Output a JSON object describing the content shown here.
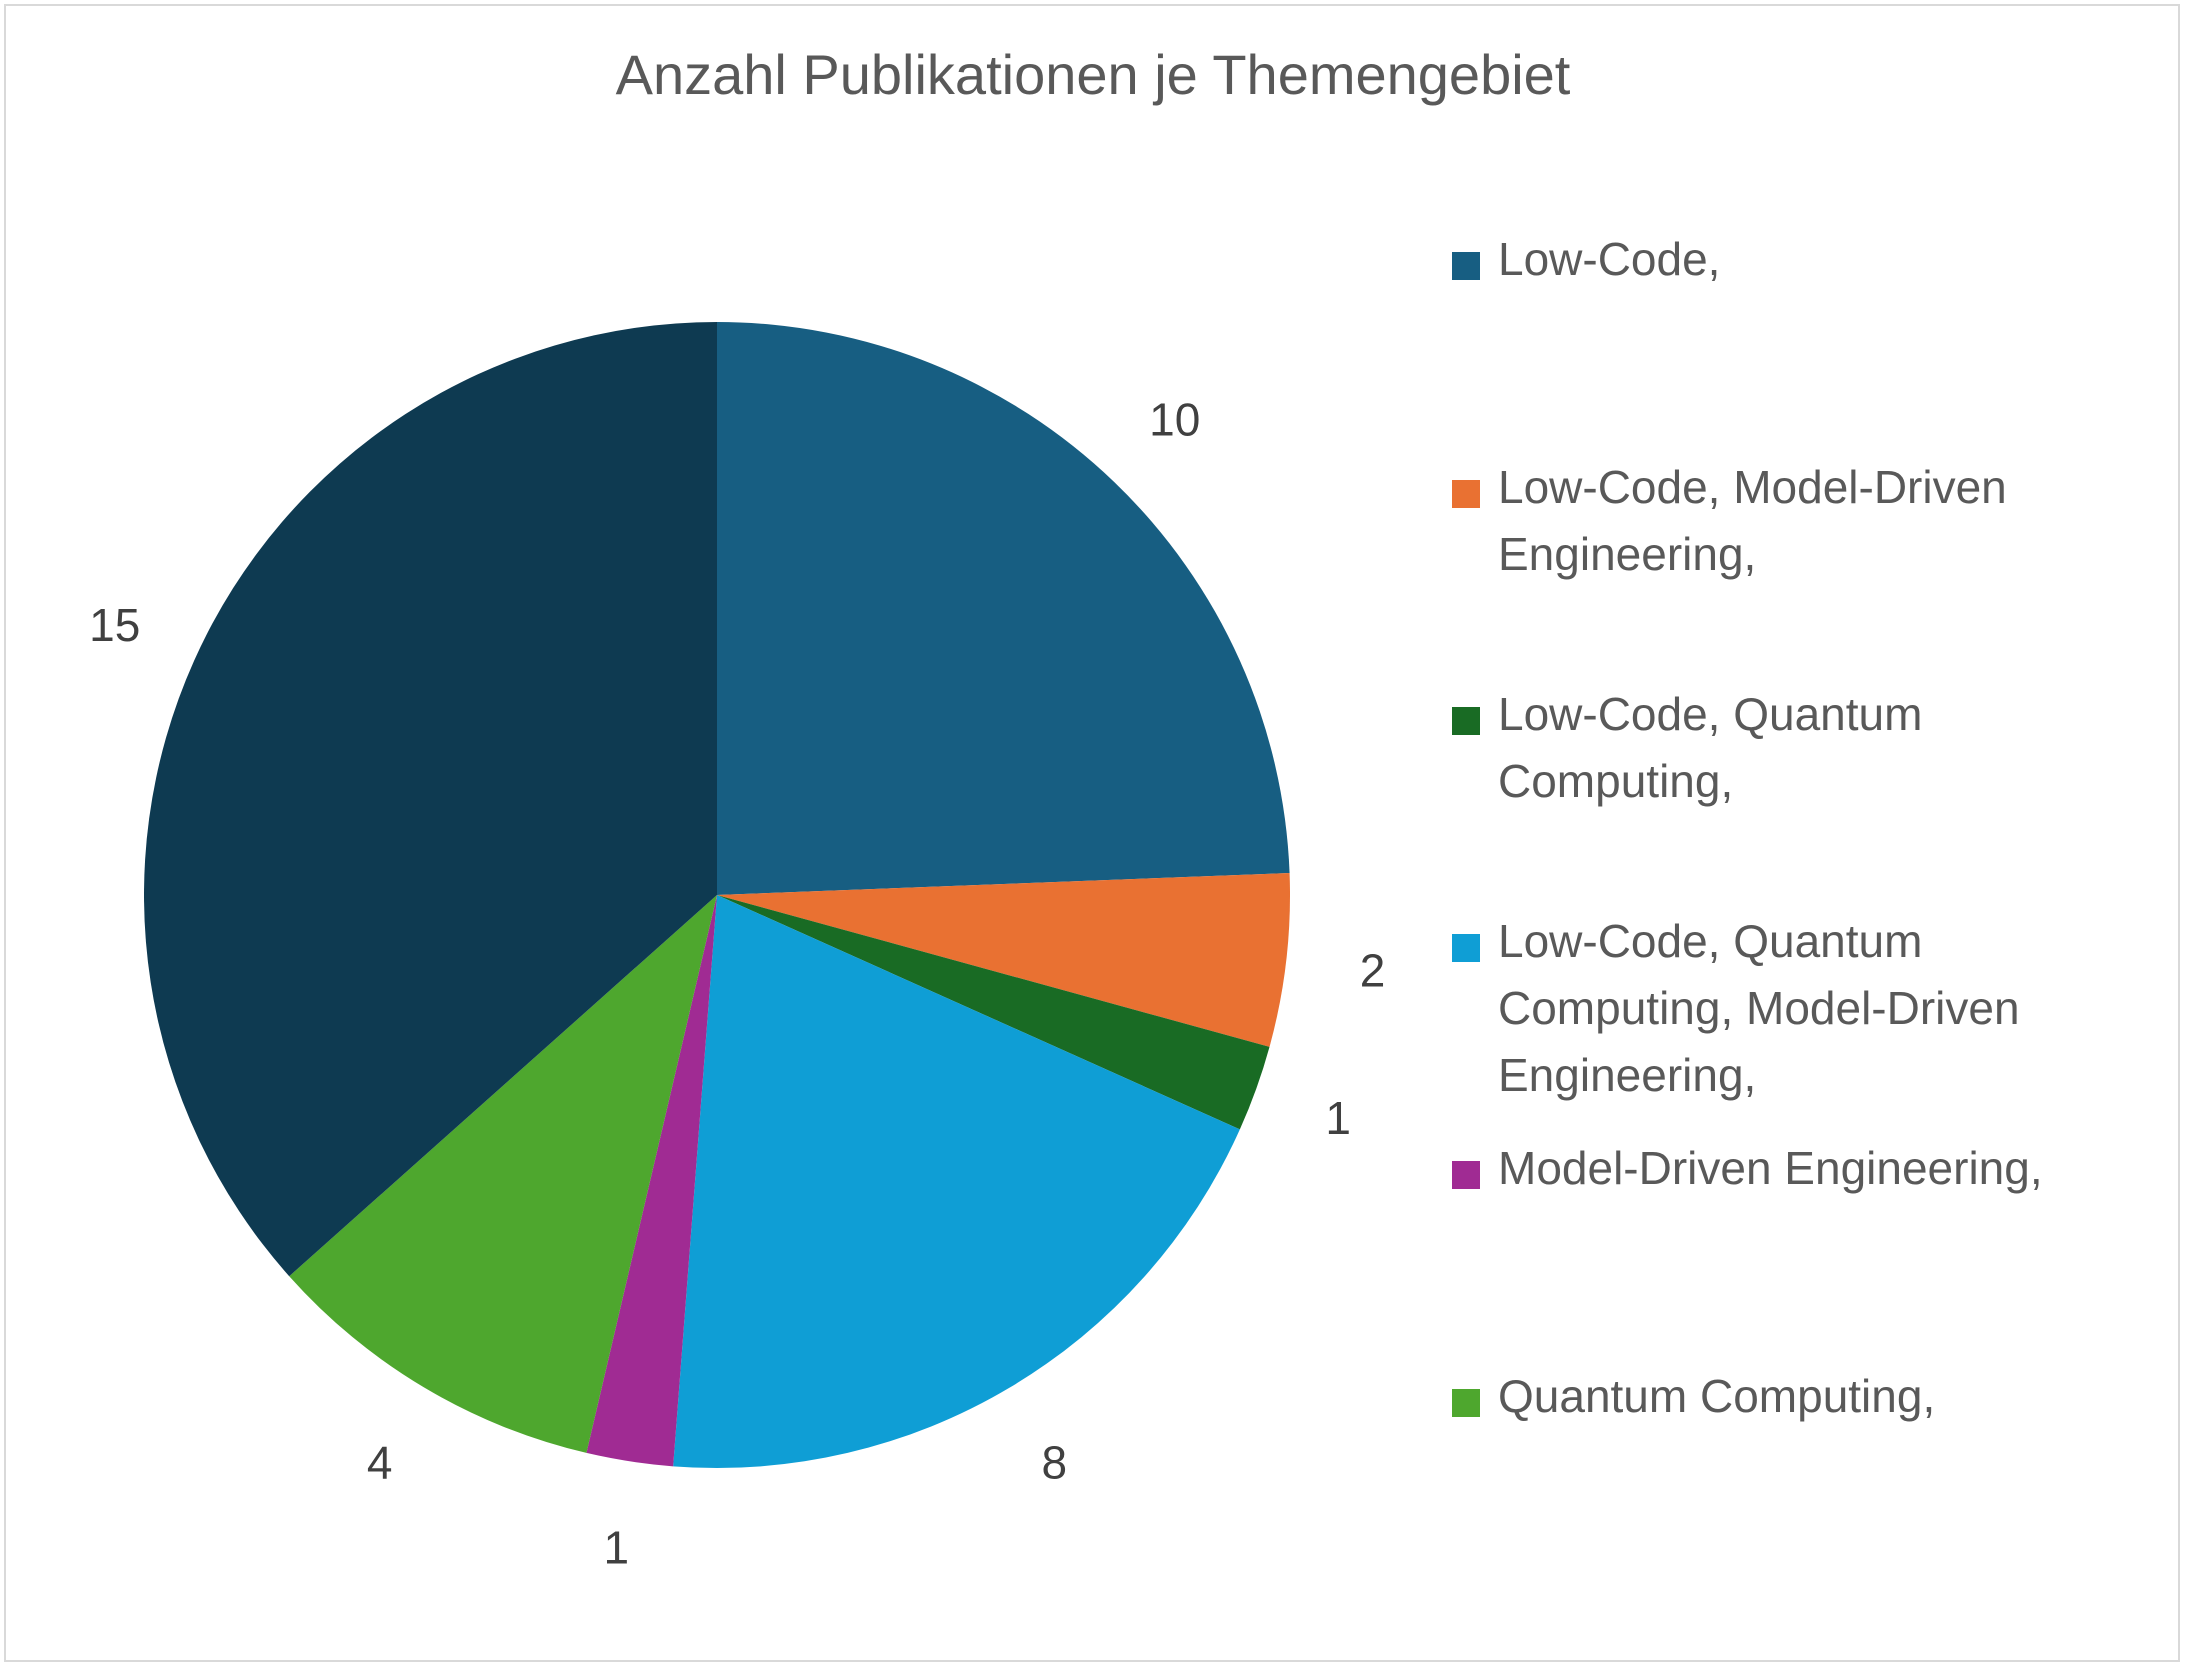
{
  "chart_data": {
    "type": "pie",
    "title": "Anzahl Publikationen je Themengebiet",
    "categories": [
      "Low-Code,",
      "Low-Code, Model-Driven Engineering,",
      "Low-Code, Quantum Computing,",
      "Low-Code, Quantum Computing, Model-Driven Engineering,",
      "Model-Driven Engineering,",
      "Quantum Computing,",
      ""
    ],
    "values": [
      10,
      2,
      1,
      8,
      1,
      4,
      15
    ],
    "colors": [
      "#175e82",
      "#e97132",
      "#196b24",
      "#0f9ed5",
      "#a02b93",
      "#4ea72e",
      "#0e3a51"
    ],
    "data_labels": [
      "10",
      "2",
      "1",
      "8",
      "1",
      "4",
      "15"
    ],
    "legend_placement": "right",
    "start_angle": "12 o'clock",
    "direction": "clockwise"
  }
}
